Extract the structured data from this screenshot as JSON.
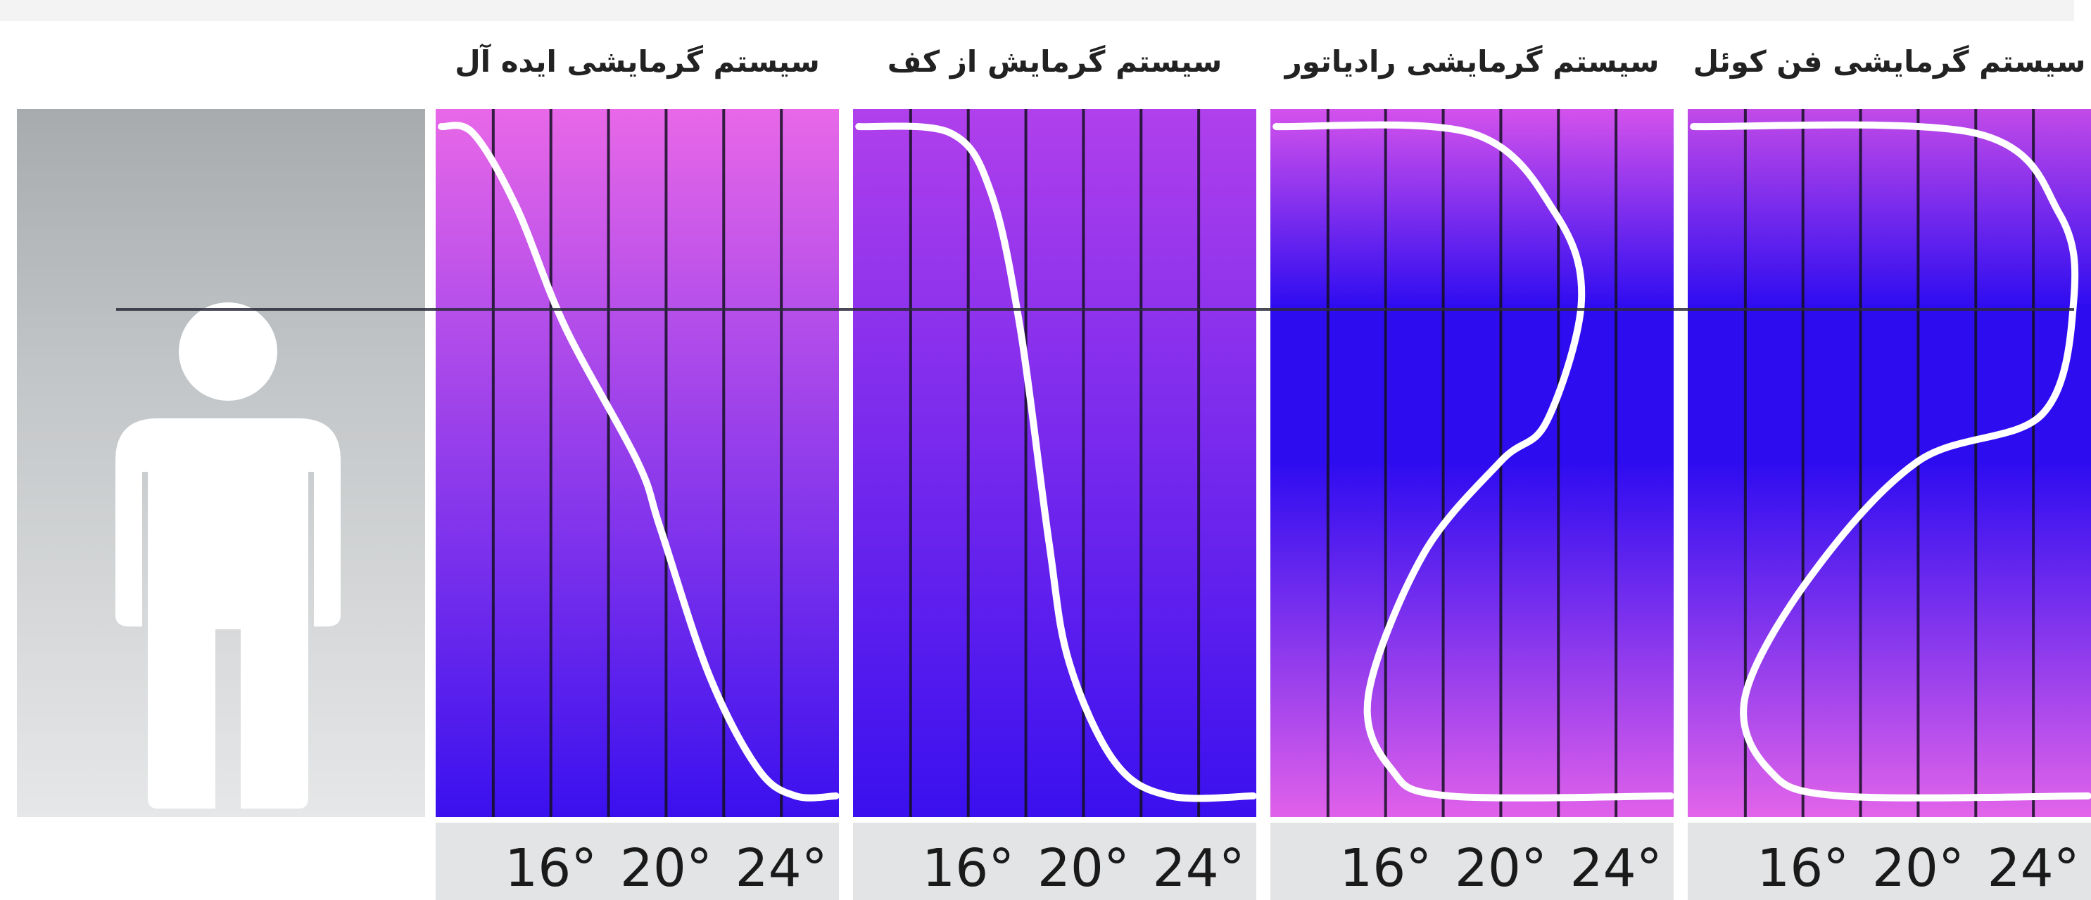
{
  "chart_data": [
    {
      "type": "line",
      "title": "سیستم گرمایشی ایده آل",
      "x_ticks": [
        "16°",
        "20°",
        "24°"
      ],
      "xlim": [
        12,
        26
      ],
      "ylim": [
        0,
        1
      ],
      "points": [
        [
          12.2,
          1.0
        ],
        [
          13.3,
          0.99
        ],
        [
          14.8,
          0.88
        ],
        [
          16.5,
          0.7
        ],
        [
          19.0,
          0.5
        ],
        [
          19.8,
          0.4
        ],
        [
          21.5,
          0.18
        ],
        [
          23.2,
          0.04
        ],
        [
          24.5,
          0.0
        ],
        [
          25.9,
          0.0
        ]
      ],
      "bg_top": "#e868e8",
      "bg_bottom": "#3a10ee"
    },
    {
      "type": "line",
      "title": "سیستم گرمایش از کف",
      "x_ticks": [
        "16°",
        "20°",
        "24°"
      ],
      "xlim": [
        12,
        26
      ],
      "ylim": [
        0,
        1
      ],
      "points": [
        [
          12.2,
          1.0
        ],
        [
          15.4,
          0.99
        ],
        [
          16.8,
          0.9
        ],
        [
          17.8,
          0.7
        ],
        [
          18.8,
          0.38
        ],
        [
          19.5,
          0.2
        ],
        [
          21.1,
          0.05
        ],
        [
          23.0,
          0.0
        ],
        [
          25.9,
          0.0
        ]
      ],
      "bg_top": "#b040ec",
      "bg_bottom": "#3a10ee"
    },
    {
      "type": "line",
      "title": "سیستم گرمایشی رادیاتور",
      "x_ticks": [
        "16°",
        "20°",
        "24°"
      ],
      "xlim": [
        12,
        26
      ],
      "ylim": [
        0,
        1
      ],
      "points": [
        [
          12.2,
          1.0
        ],
        [
          19.0,
          0.99
        ],
        [
          21.9,
          0.87
        ],
        [
          22.8,
          0.74
        ],
        [
          21.6,
          0.56
        ],
        [
          20.0,
          0.5
        ],
        [
          17.3,
          0.36
        ],
        [
          15.4,
          0.15
        ],
        [
          16.2,
          0.04
        ],
        [
          18.2,
          0.0
        ],
        [
          25.9,
          0.0
        ]
      ],
      "bg_top": "#d452ec",
      "bg_mid": "#2e0cf0",
      "bg_bottom": "#e061ea"
    },
    {
      "type": "line",
      "title": "سیستم گرمایشی فن کوئل",
      "x_ticks": [
        "16°",
        "20°",
        "24°"
      ],
      "xlim": [
        12,
        26
      ],
      "ylim": [
        0,
        1
      ],
      "points": [
        [
          12.2,
          1.0
        ],
        [
          22.0,
          0.99
        ],
        [
          24.9,
          0.87
        ],
        [
          25.4,
          0.74
        ],
        [
          24.3,
          0.57
        ],
        [
          20.0,
          0.5
        ],
        [
          16.3,
          0.33
        ],
        [
          14.0,
          0.15
        ],
        [
          14.8,
          0.04
        ],
        [
          17.3,
          0.0
        ],
        [
          25.9,
          0.0
        ]
      ],
      "bg_top": "#c24ae8",
      "bg_mid": "#2e0cf0",
      "bg_bottom": "#e264ea"
    }
  ],
  "colors": {
    "curve": "#ffffff",
    "gridline": "#141022",
    "person": "#ffffff"
  },
  "icons": {
    "person": "person-silhouette-icon"
  }
}
